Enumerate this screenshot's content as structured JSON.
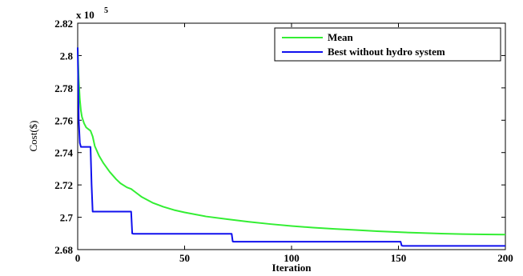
{
  "chart_data": {
    "type": "line",
    "xlabel": "Iteration",
    "ylabel": "Cost($)",
    "multiplier_label": "x 10",
    "multiplier_exponent": "5",
    "xlim": [
      0,
      200
    ],
    "ylim": [
      2.68,
      2.82
    ],
    "x_ticks": [
      0,
      50,
      100,
      150,
      200
    ],
    "y_ticks": [
      2.68,
      2.7,
      2.72,
      2.74,
      2.76,
      2.78,
      2.8,
      2.82
    ],
    "x_tick_labels": [
      "0",
      "50",
      "100",
      "150",
      "200"
    ],
    "y_tick_labels": [
      "2.68",
      "2.7",
      "2.72",
      "2.74",
      "2.76",
      "2.78",
      "2.8",
      "2.82"
    ],
    "grid": false,
    "legend_position": "top-right",
    "series": [
      {
        "name": "Mean",
        "color": "#33ee33",
        "x": [
          0,
          0.5,
          1,
          1.5,
          2,
          3,
          4,
          5,
          6,
          7,
          8,
          10,
          12,
          15,
          18,
          20,
          23,
          25,
          27,
          30,
          35,
          40,
          45,
          50,
          60,
          70,
          80,
          90,
          100,
          110,
          120,
          130,
          140,
          150,
          160,
          170,
          180,
          190,
          200
        ],
        "y": [
          2.805,
          2.785,
          2.773,
          2.766,
          2.762,
          2.758,
          2.7555,
          2.7545,
          2.7535,
          2.75,
          2.744,
          2.738,
          2.7335,
          2.728,
          2.7235,
          2.721,
          2.7185,
          2.7175,
          2.7155,
          2.7125,
          2.709,
          2.7065,
          2.7045,
          2.703,
          2.7005,
          2.6988,
          2.6972,
          2.6958,
          2.6946,
          2.6936,
          2.6928,
          2.6921,
          2.6914,
          2.6908,
          2.6903,
          2.6899,
          2.6896,
          2.6894,
          2.6893
        ]
      },
      {
        "name": "Best without hydro system",
        "color": "#1010ee",
        "x": [
          0,
          0.5,
          1,
          1.5,
          6,
          6.5,
          7,
          25,
          25.5,
          26,
          72,
          72.5,
          73,
          151,
          151.5,
          152,
          200
        ],
        "y": [
          2.805,
          2.76,
          2.746,
          2.7435,
          2.7435,
          2.72,
          2.7035,
          2.7035,
          2.69,
          2.6898,
          2.6898,
          2.685,
          2.6849,
          2.6849,
          2.6825,
          2.6823,
          2.6823
        ]
      }
    ]
  }
}
